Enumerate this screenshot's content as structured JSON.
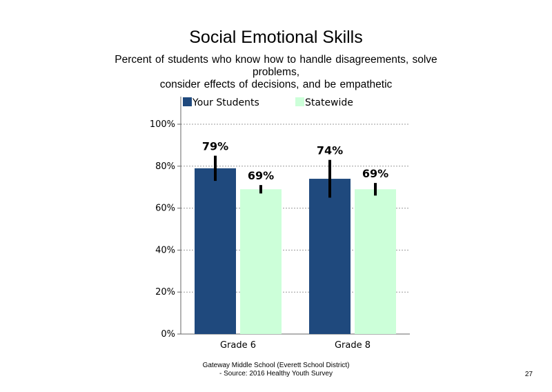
{
  "slide": {
    "page_number": "27",
    "footer_line1": "Gateway Middle School (Everett School District)",
    "footer_line2": "- Source: 2016 Healthy  Youth Survey"
  },
  "chart_data": {
    "type": "bar",
    "title": "Social Emotional Skills",
    "subtitle_lines": [
      "Percent of students  who know how to handle disagreements, solve problems,",
      "consider effects of decisions, and be empathetic"
    ],
    "categories": [
      "Grade 6",
      "Grade 8"
    ],
    "series": [
      {
        "name": "Your Students",
        "color": "#1f497d",
        "values": [
          79,
          74
        ],
        "labels": [
          "79%",
          "74%"
        ],
        "error_low": [
          73,
          65
        ],
        "error_high": [
          85,
          83
        ]
      },
      {
        "name": "Statewide",
        "color": "#ccffd9",
        "values": [
          69,
          69
        ],
        "labels": [
          "69%",
          "69%"
        ],
        "error_low": [
          67,
          66
        ],
        "error_high": [
          71,
          72
        ]
      }
    ],
    "ylim": [
      0,
      100
    ],
    "yticks": [
      0,
      20,
      40,
      60,
      80,
      100
    ],
    "ytick_labels": [
      "0%",
      "20%",
      "40%",
      "60%",
      "80%",
      "100%"
    ],
    "grid": "dotted horizontal",
    "legend_position": "top"
  }
}
